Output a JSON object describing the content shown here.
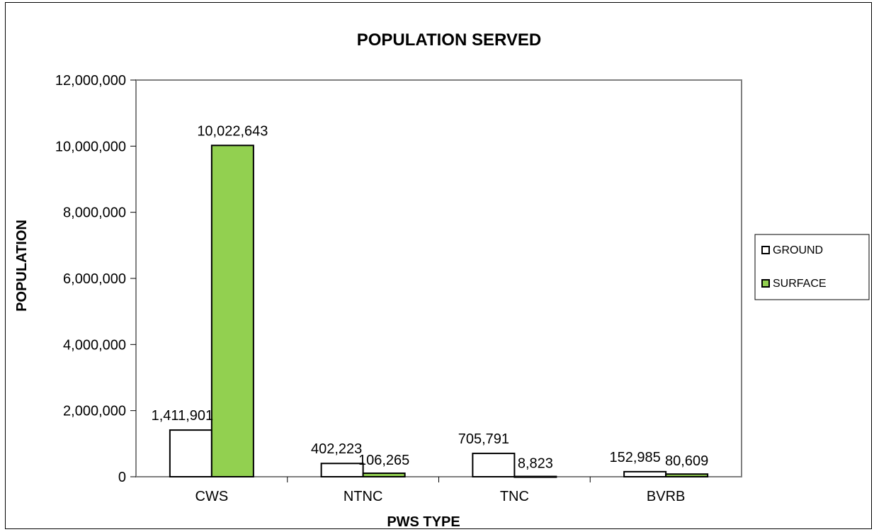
{
  "chart_data": {
    "type": "bar",
    "title": "POPULATION SERVED",
    "xlabel": "PWS TYPE",
    "ylabel": "POPULATION",
    "categories": [
      "CWS",
      "NTNC",
      "TNC",
      "BVRB"
    ],
    "series": [
      {
        "name": "GROUND",
        "values": [
          1411901,
          402223,
          705791,
          152985
        ],
        "labels": [
          "1,411,901",
          "402,223",
          "705,791",
          "152,985"
        ],
        "color": "#ffffff"
      },
      {
        "name": "SURFACE",
        "values": [
          10022643,
          106265,
          8823,
          80609
        ],
        "labels": [
          "10,022,643",
          "106,265",
          "8,823",
          "80,609"
        ],
        "color": "#92d050"
      }
    ],
    "ylim": [
      0,
      12000000
    ],
    "yticks": [
      0,
      2000000,
      4000000,
      6000000,
      8000000,
      10000000,
      12000000
    ],
    "ytick_labels": [
      "0",
      "2,000,000",
      "4,000,000",
      "6,000,000",
      "8,000,000",
      "10,000,000",
      "12,000,000"
    ],
    "grid": false,
    "legend_position": "right",
    "plot_border_color": "#808080"
  }
}
